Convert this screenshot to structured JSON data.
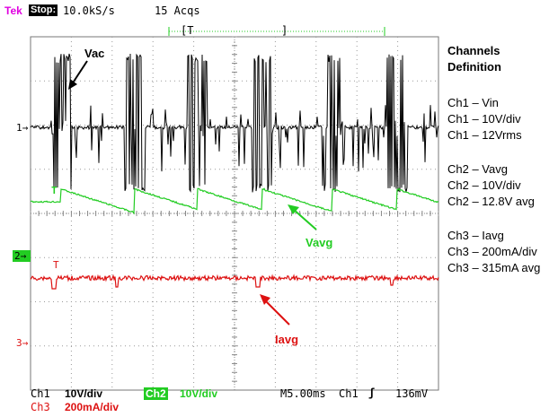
{
  "header": {
    "brand": "Tek",
    "state": "Stop:",
    "sample_rate": "10.0kS/s",
    "acquisitions": "15 Acqs",
    "trigger_bracket": "[T",
    "trigger_bracket_end": "]"
  },
  "markers": {
    "ch1": "1→",
    "ch2": "2→",
    "ch3": "3→",
    "ch2_trig": "T",
    "ch3_trig": "T"
  },
  "annotations": {
    "vac": "Vac",
    "vavg": "Vavg",
    "iavg": "Iavg"
  },
  "legend": {
    "title_line1": "Channels",
    "title_line2": "Definition",
    "groups": [
      [
        "Ch1 – Vin",
        "Ch1 – 10V/div",
        "Ch1 – 12Vrms"
      ],
      [
        "Ch2 – Vavg",
        "Ch2 – 10V/div",
        "Ch2 – 12.8V avg"
      ],
      [
        "Ch3 – Iavg",
        "Ch3 – 200mA/div",
        "Ch3 – 315mA avg"
      ]
    ]
  },
  "footer": {
    "ch1_name": "Ch1",
    "ch1_scale": "10V/div",
    "ch2_name": "Ch2",
    "ch2_scale": "10V/div",
    "timebase": "M5.00ms",
    "trig_source": "Ch1",
    "trig_slope": "ʃ",
    "trig_level": "136mV",
    "ch3_name": "Ch3",
    "ch3_scale": "200mA/div"
  },
  "colors": {
    "ch1": "#000000",
    "ch2": "#22cc22",
    "ch3": "#dd1111",
    "brand": "#e000e0",
    "grid": "#888888"
  }
}
